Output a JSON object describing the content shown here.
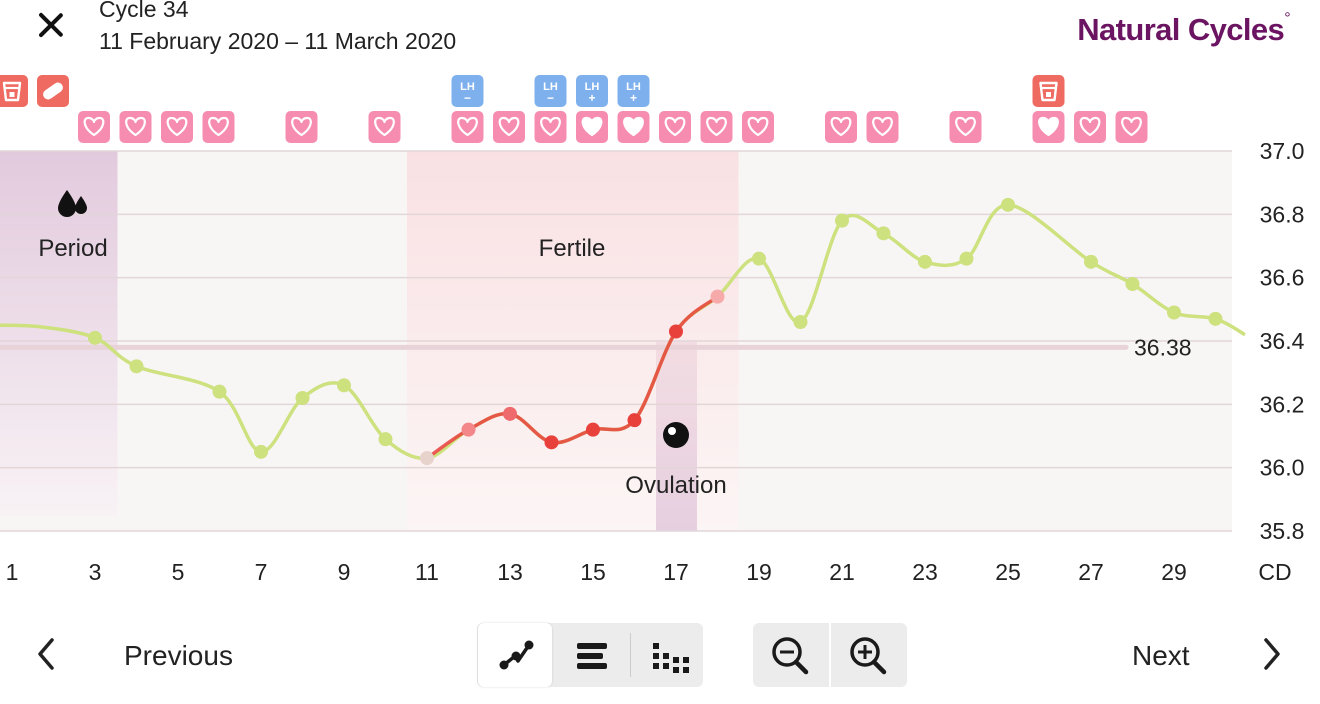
{
  "header": {
    "title": "Cycle 34",
    "subtitle": "11 February 2020 – 11 March 2020",
    "brand": "Natural Cycles",
    "brand_mark": "°",
    "close_icon": "close-icon"
  },
  "colors": {
    "brand": "#6b1461",
    "period_band": "#e2cadd",
    "fertile_band": "#f9e1e3",
    "heart_badge": "#f68db0",
    "lh_badge": "#7fb0ee",
    "test_badge": "#ef6b62",
    "line_normal": "#cde17e",
    "line_fertile": "#e8403b",
    "coverline": "#e7d3d8"
  },
  "chart_labels": {
    "period": "Period",
    "fertile": "Fertile",
    "ovulation": "Ovulation",
    "coverline_value": "36.38",
    "x_axis_unit": "CD"
  },
  "chart_data": {
    "type": "line",
    "x_axis_label": "CD",
    "x_ticks": [
      1,
      3,
      5,
      7,
      9,
      11,
      13,
      15,
      17,
      19,
      21,
      23,
      25,
      27,
      29
    ],
    "y_ticks": [
      "37.0",
      "36.8",
      "36.6",
      "36.4",
      "36.2",
      "36.0",
      "35.8"
    ],
    "ylim": [
      35.8,
      37.0
    ],
    "coverline": 36.38,
    "series": [
      {
        "x": [
          3,
          4,
          6,
          7,
          8,
          9,
          10,
          11,
          12,
          13,
          14,
          15,
          16,
          17,
          18,
          19,
          20,
          21,
          22,
          23,
          24,
          25,
          27,
          28,
          29,
          30
        ],
        "y": [
          36.41,
          36.32,
          36.24,
          36.05,
          36.22,
          36.26,
          36.09,
          36.03,
          36.12,
          36.17,
          36.08,
          36.12,
          36.15,
          36.43,
          36.54,
          36.66,
          36.46,
          36.78,
          36.74,
          36.65,
          36.66,
          36.83,
          36.65,
          36.58,
          36.49,
          36.47
        ]
      }
    ],
    "period_days": [
      1,
      4
    ],
    "fertile_days": [
      11,
      18
    ],
    "ovulation_day": 17
  },
  "daily_markers": {
    "tests": [
      {
        "day": 1,
        "kind": "test-cup"
      },
      {
        "day": 2,
        "kind": "pill"
      },
      {
        "day": 26,
        "kind": "test-cup"
      }
    ],
    "lh": [
      {
        "day": 12,
        "label": "LH",
        "sign": "−"
      },
      {
        "day": 14,
        "label": "LH",
        "sign": "−"
      },
      {
        "day": 15,
        "label": "LH",
        "sign": "+"
      },
      {
        "day": 16,
        "label": "LH",
        "sign": "+"
      }
    ],
    "hearts": [
      {
        "day": 3,
        "filled": false
      },
      {
        "day": 4,
        "filled": false
      },
      {
        "day": 5,
        "filled": false
      },
      {
        "day": 6,
        "filled": false
      },
      {
        "day": 8,
        "filled": false
      },
      {
        "day": 10,
        "filled": false
      },
      {
        "day": 12,
        "filled": false
      },
      {
        "day": 13,
        "filled": false
      },
      {
        "day": 14,
        "filled": false
      },
      {
        "day": 15,
        "filled": true
      },
      {
        "day": 16,
        "filled": true
      },
      {
        "day": 17,
        "filled": false
      },
      {
        "day": 18,
        "filled": false
      },
      {
        "day": 19,
        "filled": false
      },
      {
        "day": 21,
        "filled": false
      },
      {
        "day": 22,
        "filled": false
      },
      {
        "day": 24,
        "filled": false
      },
      {
        "day": 26,
        "filled": true
      },
      {
        "day": 27,
        "filled": false
      },
      {
        "day": 28,
        "filled": false
      }
    ]
  },
  "footer": {
    "previous_label": "Previous",
    "next_label": "Next",
    "view_buttons": [
      "line-chart-view-icon",
      "bar-view-icon",
      "dot-grid-view-icon"
    ],
    "zoom_buttons": [
      "zoom-out-icon",
      "zoom-in-icon"
    ]
  }
}
